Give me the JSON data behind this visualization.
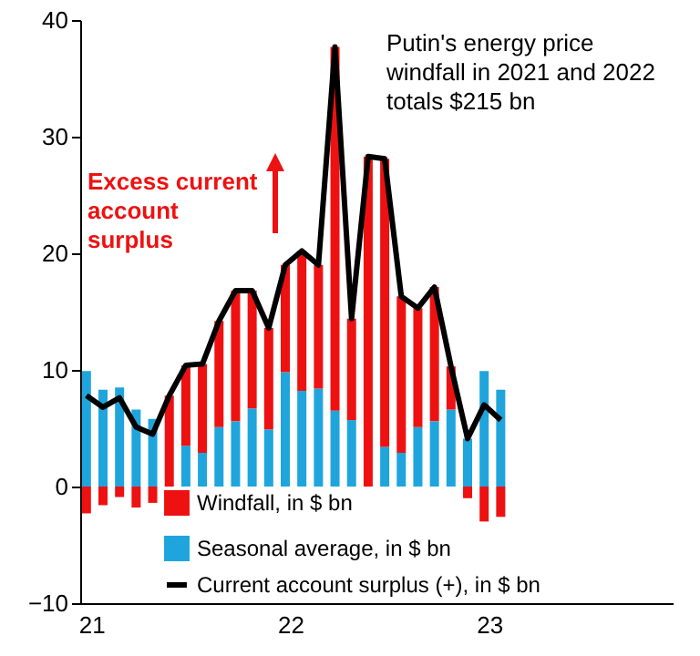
{
  "chart_data": {
    "type": "bar",
    "stacked": true,
    "categories": [
      "21",
      null,
      null,
      null,
      null,
      null,
      null,
      null,
      null,
      null,
      null,
      null,
      "22",
      null,
      null,
      null,
      null,
      null,
      null,
      null,
      null,
      null,
      null,
      null,
      "23",
      null,
      null,
      null,
      null,
      null,
      null,
      null,
      null,
      null,
      null,
      null
    ],
    "series": [
      {
        "name": "Seasonal average, in $ bn",
        "color": "#1fa5dc",
        "values": [
          9.9,
          8.3,
          8.5,
          6.6,
          5.8,
          0,
          3.5,
          2.9,
          5.1,
          5.6,
          6.7,
          4.9,
          9.8,
          8.2,
          8.4,
          6.5,
          5.7,
          0,
          3.4,
          2.9,
          5.1,
          5.6,
          6.6,
          4.1,
          9.9,
          8.3,
          null,
          null,
          null,
          null,
          null,
          null,
          null,
          null,
          null,
          null
        ]
      },
      {
        "name": "Windfall, in $ bn",
        "color": "#ee1111",
        "values": [
          -2.3,
          -1.6,
          -0.9,
          -1.8,
          -1.4,
          7.8,
          6.9,
          7.6,
          9.1,
          11.2,
          10.1,
          8.7,
          9.2,
          12.0,
          10.6,
          31.2,
          8.7,
          28.3,
          24.7,
          13.4,
          10.2,
          11.5,
          3.7,
          -1.0,
          -3.0,
          -2.6,
          null,
          null,
          null,
          null,
          null,
          null,
          null,
          null,
          null,
          null
        ]
      },
      {
        "name": "Current account surplus (+), in $ bn",
        "type": "line",
        "color": "#000000",
        "values": [
          7.8,
          6.8,
          7.6,
          5.1,
          4.5,
          7.8,
          10.4,
          10.5,
          14.2,
          16.8,
          16.8,
          13.6,
          19.0,
          20.2,
          19.0,
          37.7,
          14.4,
          28.3,
          28.1,
          16.3,
          15.3,
          17.1,
          10.3,
          4.1,
          7.0,
          5.7,
          null,
          null,
          null,
          null,
          null,
          null,
          null,
          null,
          null,
          null
        ]
      }
    ],
    "ylim": [
      -10,
      40
    ],
    "yticks": [
      -10,
      0,
      10,
      20,
      30,
      40
    ],
    "grid": false,
    "legend": "bottom",
    "marker": "none",
    "annotations": [
      "Excess current account surplus",
      "Putin's energy price windfall in 2021 and 2022 totals $215  bn"
    ]
  }
}
